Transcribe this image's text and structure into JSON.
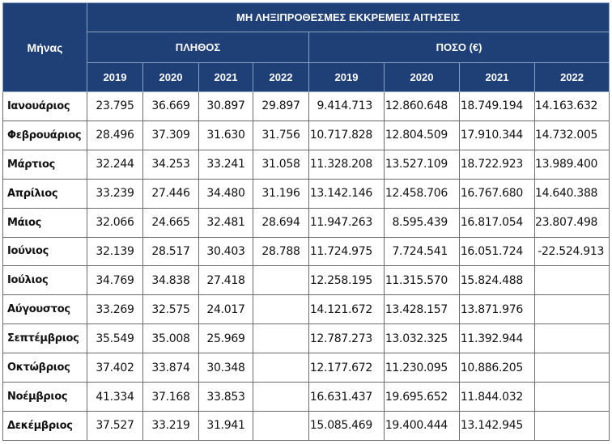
{
  "table": {
    "month_header": "Μήνας",
    "main_header": "ΜΗ ΛΗΞΙΠΡΟΘΕΣΜΕΣ ΕΚΚΡΕΜΕΙΣ ΑΙΤΗΣΕΙΣ",
    "group_count": "ΠΛΗΘΟΣ",
    "group_amount": "ΠΟΣΟ (€)",
    "years": [
      "2019",
      "2020",
      "2021",
      "2022"
    ],
    "rows": [
      {
        "month": "Ιανουάριος",
        "count": [
          "23.795",
          "36.669",
          "30.897",
          "29.897"
        ],
        "amount": [
          "9.414.713",
          "12.860.648",
          "18.749.194",
          "14.163.632"
        ]
      },
      {
        "month": "Φεβρουάριος",
        "count": [
          "28.496",
          "37.309",
          "31.630",
          "31.756"
        ],
        "amount": [
          "10.717.828",
          "12.804.509",
          "17.910.344",
          "14.732.005"
        ]
      },
      {
        "month": "Μάρτιος",
        "count": [
          "32.244",
          "34.253",
          "33.241",
          "31.058"
        ],
        "amount": [
          "11.328.208",
          "13.527.109",
          "18.722.923",
          "13.989.400"
        ]
      },
      {
        "month": "Απρίλιος",
        "count": [
          "33.239",
          "27.446",
          "34.480",
          "31.196"
        ],
        "amount": [
          "13.142.146",
          "12.458.706",
          "16.767.680",
          "14.640.388"
        ]
      },
      {
        "month": "Μάιος",
        "count": [
          "32.066",
          "24.665",
          "32.481",
          "28.694"
        ],
        "amount": [
          "11.947.263",
          "8.595.439",
          "16.817.054",
          "23.807.498"
        ]
      },
      {
        "month": "Ιούνιος",
        "count": [
          "32.139",
          "28.517",
          "30.403",
          "28.788"
        ],
        "amount": [
          "11.724.975",
          "7.724.541",
          "16.051.724",
          "-22.524.913"
        ]
      },
      {
        "month": "Ιούλιος",
        "count": [
          "34.769",
          "34.838",
          "27.418",
          ""
        ],
        "amount": [
          "12.258.195",
          "11.315.570",
          "15.824.488",
          ""
        ]
      },
      {
        "month": "Αύγουστος",
        "count": [
          "33.269",
          "32.575",
          "24.017",
          ""
        ],
        "amount": [
          "14.121.672",
          "13.428.157",
          "13.871.976",
          ""
        ]
      },
      {
        "month": "Σεπτέμβριος",
        "count": [
          "35.549",
          "35.008",
          "25.969",
          ""
        ],
        "amount": [
          "12.787.273",
          "13.032.325",
          "11.392.944",
          ""
        ]
      },
      {
        "month": "Οκτώβριος",
        "count": [
          "37.402",
          "33.874",
          "30.348",
          ""
        ],
        "amount": [
          "12.177.672",
          "11.230.095",
          "10.886.205",
          ""
        ]
      },
      {
        "month": "Νοέμβριος",
        "count": [
          "41.334",
          "37.168",
          "33.853",
          ""
        ],
        "amount": [
          "16.631.437",
          "19.695.652",
          "11.844.032",
          ""
        ]
      },
      {
        "month": "Δεκέμβριος",
        "count": [
          "37.527",
          "33.219",
          "31.941",
          ""
        ],
        "amount": [
          "15.085.469",
          "19.400.444",
          "13.142.945",
          ""
        ]
      }
    ]
  }
}
